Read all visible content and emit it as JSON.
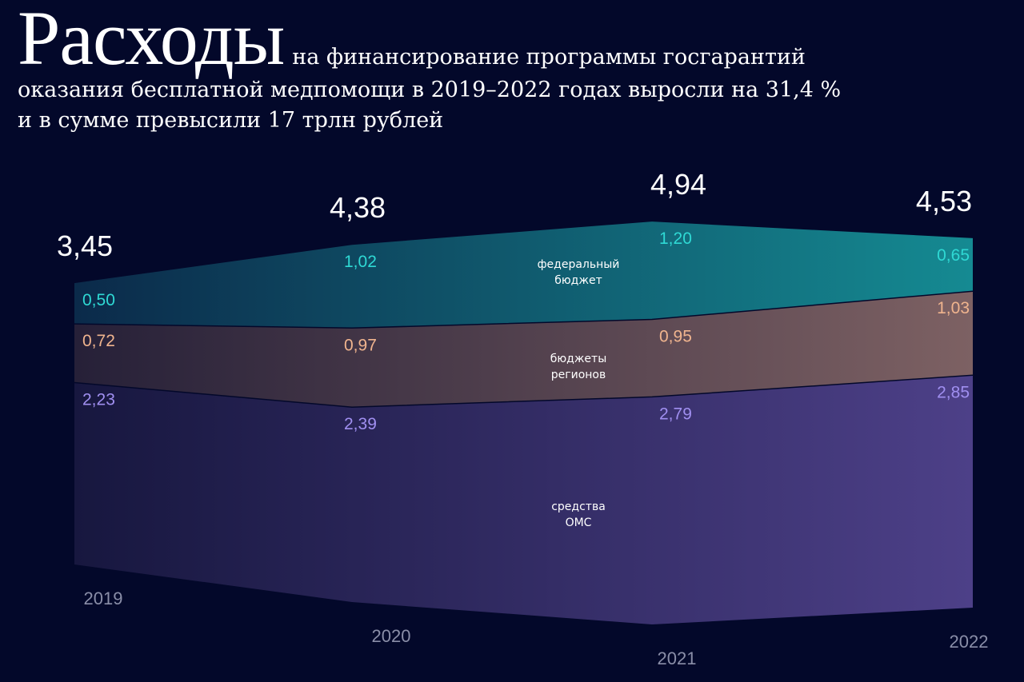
{
  "headline": {
    "big": "Расходы",
    "line1_rest": "на финансирование программы госгарантий",
    "line2": "оказания бесплатной медпомощи в 2019–2022 годах выросли на 31,4 %",
    "line3": "и в сумме превысили 17 трлн рублей"
  },
  "chart_data": {
    "type": "area",
    "stacked": true,
    "categories": [
      "2019",
      "2020",
      "2021",
      "2022"
    ],
    "totals": [
      3.45,
      4.38,
      4.94,
      4.53
    ],
    "total_labels": [
      "3,45",
      "4,38",
      "4,94",
      "4,53"
    ],
    "series": [
      {
        "name": "средства ОМС",
        "name_lines": [
          "средства",
          "ОМС"
        ],
        "values": [
          2.23,
          2.39,
          2.79,
          2.85
        ],
        "labels": [
          "2,23",
          "2,39",
          "2,79",
          "2,85"
        ],
        "label_color": "#a08ff0",
        "colors": [
          "#17173f",
          "#4d4088"
        ]
      },
      {
        "name": "бюджеты регионов",
        "name_lines": [
          "бюджеты",
          "регионов"
        ],
        "values": [
          0.72,
          0.97,
          0.95,
          1.03
        ],
        "labels": [
          "0,72",
          "0,97",
          "0,95",
          "1,03"
        ],
        "label_color": "#f0b48e",
        "colors": [
          "#262038",
          "#7d6163"
        ]
      },
      {
        "name": "федеральный бюджет",
        "name_lines": [
          "федеральный",
          "бюджет"
        ],
        "values": [
          0.5,
          1.02,
          1.2,
          0.65
        ],
        "labels": [
          "0,50",
          "1,02",
          "1,20",
          "0,65"
        ],
        "label_color": "#2fd9d4",
        "colors": [
          "#0b2a4a",
          "#158a92"
        ]
      }
    ]
  }
}
